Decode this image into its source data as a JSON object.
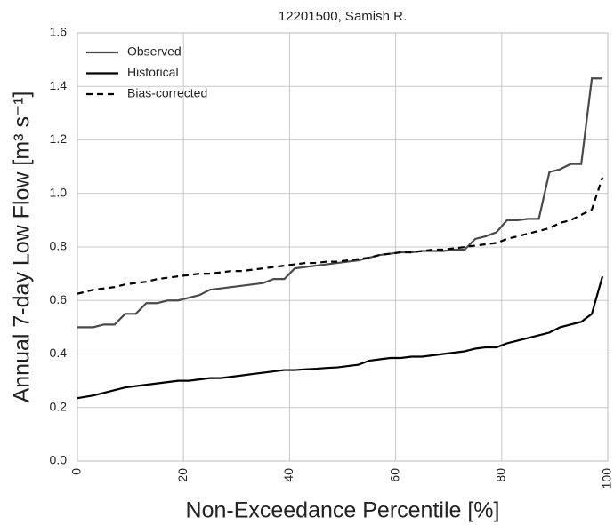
{
  "chart_data": {
    "type": "line",
    "title": "12201500, Samish R.",
    "x_label": "Non-Exceedance Percentile [%]",
    "y_label": "Annual 7-day Low Flow [m³ s⁻¹]",
    "x": [
      0,
      3,
      5,
      7,
      9,
      11,
      13,
      15,
      17,
      19,
      21,
      23,
      25,
      27,
      29,
      31,
      33,
      35,
      37,
      39,
      41,
      43,
      45,
      47,
      49,
      51,
      53,
      55,
      57,
      59,
      61,
      63,
      65,
      67,
      69,
      71,
      73,
      75,
      77,
      79,
      81,
      83,
      85,
      87,
      89,
      91,
      93,
      95,
      97,
      99
    ],
    "series": [
      {
        "name": "Observed",
        "color": "#4a4a4a",
        "style": "solid",
        "values": [
          0.5,
          0.5,
          0.51,
          0.51,
          0.55,
          0.55,
          0.59,
          0.59,
          0.6,
          0.6,
          0.61,
          0.62,
          0.64,
          0.645,
          0.65,
          0.655,
          0.66,
          0.665,
          0.68,
          0.68,
          0.72,
          0.725,
          0.73,
          0.735,
          0.74,
          0.745,
          0.75,
          0.76,
          0.77,
          0.775,
          0.78,
          0.78,
          0.785,
          0.785,
          0.785,
          0.79,
          0.79,
          0.83,
          0.84,
          0.855,
          0.9,
          0.9,
          0.905,
          0.905,
          1.08,
          1.09,
          1.11,
          1.11,
          1.43,
          1.43
        ]
      },
      {
        "name": "Historical",
        "color": "#000000",
        "style": "solid",
        "values": [
          0.235,
          0.245,
          0.255,
          0.265,
          0.275,
          0.28,
          0.285,
          0.29,
          0.295,
          0.3,
          0.3,
          0.305,
          0.31,
          0.31,
          0.315,
          0.32,
          0.325,
          0.33,
          0.335,
          0.34,
          0.34,
          0.343,
          0.345,
          0.348,
          0.35,
          0.355,
          0.36,
          0.375,
          0.38,
          0.385,
          0.385,
          0.39,
          0.39,
          0.395,
          0.4,
          0.405,
          0.41,
          0.42,
          0.425,
          0.425,
          0.44,
          0.45,
          0.46,
          0.47,
          0.48,
          0.5,
          0.51,
          0.52,
          0.55,
          0.69
        ]
      },
      {
        "name": "Bias-corrected",
        "color": "#000000",
        "style": "dashed",
        "values": [
          0.625,
          0.64,
          0.645,
          0.65,
          0.66,
          0.665,
          0.67,
          0.68,
          0.685,
          0.69,
          0.695,
          0.7,
          0.7,
          0.705,
          0.71,
          0.71,
          0.715,
          0.72,
          0.725,
          0.73,
          0.735,
          0.74,
          0.74,
          0.745,
          0.745,
          0.75,
          0.755,
          0.76,
          0.77,
          0.775,
          0.78,
          0.78,
          0.785,
          0.79,
          0.79,
          0.795,
          0.8,
          0.805,
          0.81,
          0.815,
          0.83,
          0.84,
          0.85,
          0.86,
          0.87,
          0.89,
          0.9,
          0.92,
          0.94,
          1.06
        ]
      }
    ],
    "xlim": [
      0,
      100
    ],
    "xticks": [
      0,
      20,
      40,
      60,
      80,
      100
    ],
    "ylim": [
      0,
      1.6
    ],
    "yticks": [
      {
        "value": 0,
        "label": "0.0"
      },
      0.2,
      0.4,
      0.6,
      0.8,
      {
        "value": 1,
        "label": "1.0"
      },
      1.2,
      1.4,
      1.6
    ],
    "grid": true,
    "legend": "upper left"
  }
}
